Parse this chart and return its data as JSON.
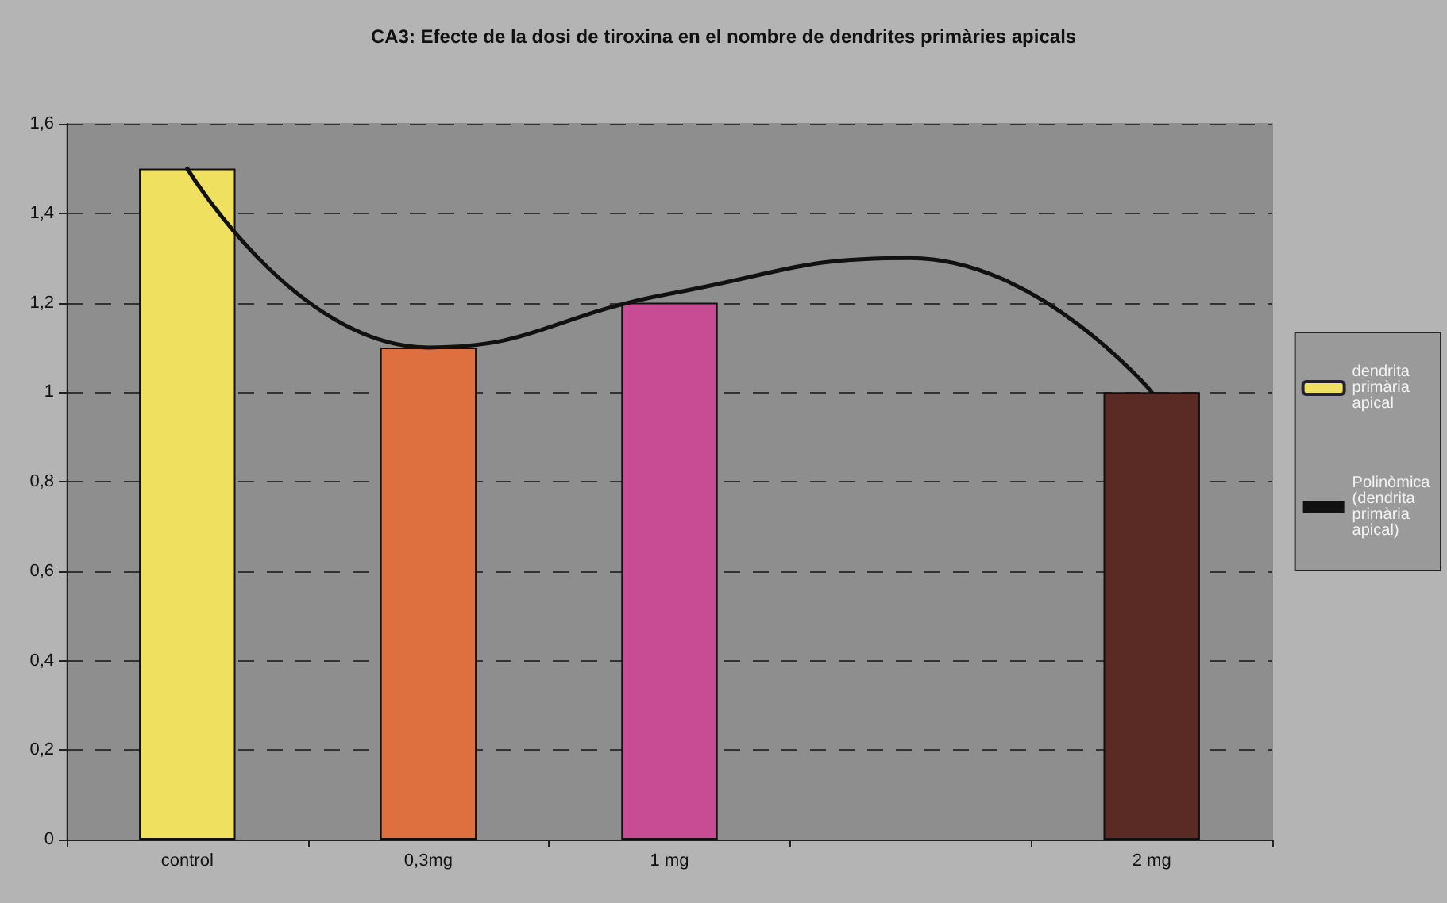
{
  "chart_data": {
    "type": "bar",
    "title": "CA3: Efecte de la dosi de tiroxina en el nombre de dendrites primàries apicals",
    "categories": [
      "control",
      "0,3mg",
      "1 mg",
      null,
      "2 mg"
    ],
    "series": [
      {
        "name": "dendrita primària apical",
        "values": [
          1.5,
          1.1,
          1.2,
          null,
          1.0
        ],
        "colors": [
          "#f0e060",
          "#de7040",
          "#c84c94",
          null,
          "#5a2a24"
        ]
      },
      {
        "name": "Polinòmica (dendrita primària apical)",
        "type": "line",
        "color": "#111111",
        "values": [
          1.5,
          1.1,
          1.22,
          1.3,
          1.0
        ]
      }
    ],
    "ylim": [
      0,
      1.6
    ],
    "yticks": [
      {
        "value": 0,
        "label": "0"
      },
      {
        "value": 0.2,
        "label": "0,2"
      },
      {
        "value": 0.4,
        "label": "0,4"
      },
      {
        "value": 0.6,
        "label": "0,6"
      },
      {
        "value": 0.8,
        "label": "0,8"
      },
      {
        "value": 1,
        "label": "1"
      },
      {
        "value": 1.2,
        "label": "1,2"
      },
      {
        "value": 1.4,
        "label": "1,4"
      },
      {
        "value": 1.6,
        "label": "1,6"
      }
    ],
    "grid": "y",
    "legend": "right",
    "marker": "none",
    "line_style": "solid"
  }
}
